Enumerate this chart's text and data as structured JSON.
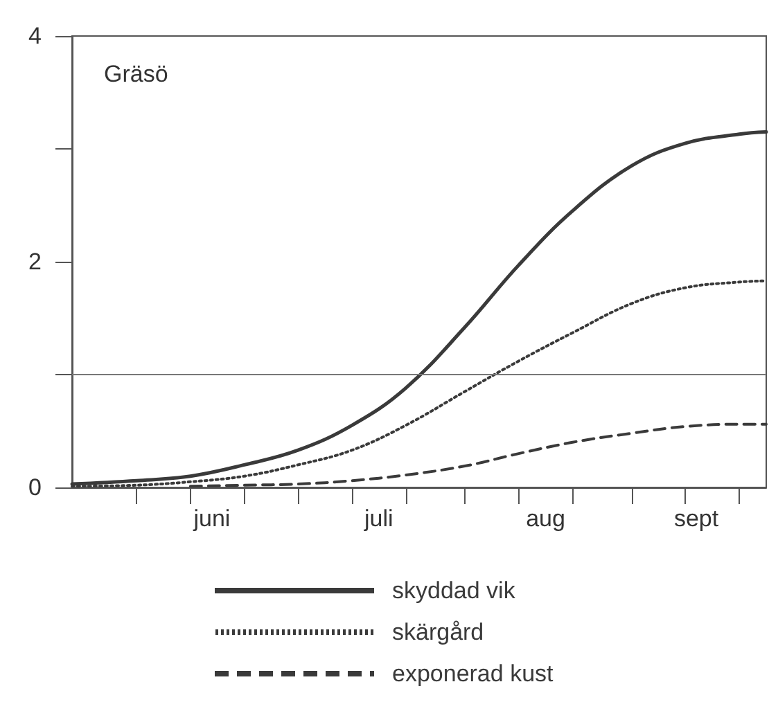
{
  "chart_data": {
    "type": "line",
    "title": "Gräsö",
    "x": [
      "--05-20",
      "--06-01",
      "--06-11",
      "--06-21",
      "--07-01",
      "--07-11",
      "--07-21",
      "--08-01",
      "--08-11",
      "--08-21",
      "--09-01",
      "--09-11",
      "--09-21",
      "--09-26"
    ],
    "series": [
      {
        "name": "skyddad vik",
        "color": "#3a3a3a",
        "line_style": "solid",
        "values": [
          0.03,
          0.06,
          0.1,
          0.2,
          0.33,
          0.55,
          0.88,
          1.42,
          1.97,
          2.45,
          2.85,
          3.05,
          3.13,
          3.15
        ]
      },
      {
        "name": "skärgård",
        "color": "#3a3a3a",
        "line_style": "dotted",
        "values": [
          0.01,
          0.02,
          0.05,
          0.1,
          0.2,
          0.33,
          0.55,
          0.85,
          1.12,
          1.37,
          1.63,
          1.77,
          1.82,
          1.83
        ]
      },
      {
        "name": "exponerad kust",
        "color": "#3a3a3a",
        "line_style": "dashed",
        "values": [
          null,
          null,
          0.01,
          0.02,
          0.03,
          0.06,
          0.11,
          0.19,
          0.3,
          0.4,
          0.48,
          0.54,
          0.56,
          0.56
        ]
      }
    ],
    "xlim": [
      "--05-20",
      "--09-26"
    ],
    "xticks": [
      {
        "value": "--06-01",
        "label": null
      },
      {
        "value": "--06-11",
        "label": null
      },
      {
        "value": "--06-21",
        "label": null
      },
      {
        "value": "--07-01",
        "label": null
      },
      {
        "value": "--07-11",
        "label": null
      },
      {
        "value": "--07-21",
        "label": null
      },
      {
        "value": "--08-01",
        "label": null
      },
      {
        "value": "--08-11",
        "label": null
      },
      {
        "value": "--08-21",
        "label": null
      },
      {
        "value": "--09-01",
        "label": null
      },
      {
        "value": "--09-11",
        "label": null
      },
      {
        "value": "--09-21",
        "label": null
      },
      {
        "value": "--06-15",
        "label": "juni"
      },
      {
        "value": "--07-16",
        "label": "juli"
      },
      {
        "value": "--08-16",
        "label": "aug"
      },
      {
        "value": "--09-13",
        "label": "sept"
      }
    ],
    "ylim": [
      0,
      4
    ],
    "yticks": [
      0,
      {
        "value": 1,
        "label": null
      },
      2,
      {
        "value": 3,
        "label": null
      },
      4
    ],
    "ref_lines": [
      {
        "axis": "y",
        "value": 1,
        "color": "#777777"
      }
    ],
    "grid": false,
    "legend": "bottom",
    "marker": "none"
  }
}
